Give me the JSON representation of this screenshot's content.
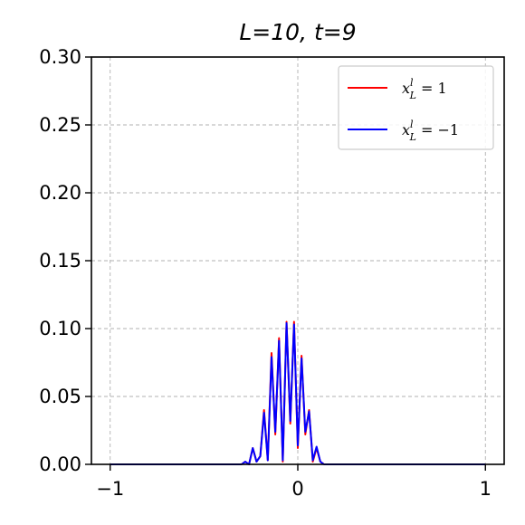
{
  "chart_data": {
    "type": "line",
    "title": "L=10, t=9",
    "xlabel": "",
    "ylabel": "",
    "xlim": [
      -1.1,
      1.1
    ],
    "ylim": [
      0,
      0.3
    ],
    "xticks": [
      -1,
      0,
      1
    ],
    "xtick_labels": [
      "−1",
      "0",
      "1"
    ],
    "yticks": [
      0,
      0.05,
      0.1,
      0.15,
      0.2,
      0.25,
      0.3
    ],
    "ytick_labels": [
      "0.00",
      "0.05",
      "0.10",
      "0.15",
      "0.20",
      "0.25",
      "0.30"
    ],
    "grid": true,
    "legend_position": "top-right",
    "series": [
      {
        "name": "x_L^l = 1",
        "color": "#ff0000",
        "x": [
          -1.0,
          -0.3,
          -0.28,
          -0.26,
          -0.24,
          -0.22,
          -0.2,
          -0.18,
          -0.16,
          -0.14,
          -0.12,
          -0.1,
          -0.08,
          -0.06,
          -0.04,
          -0.02,
          0.0,
          0.02,
          0.04,
          0.06,
          0.08,
          0.1,
          0.12,
          0.14,
          0.16,
          0.18,
          0.2,
          0.22,
          0.24,
          0.26,
          0.28,
          0.3,
          1.0
        ],
        "y": [
          0.0,
          0.0,
          0.002,
          0.0,
          0.012,
          0.002,
          0.006,
          0.04,
          0.003,
          0.082,
          0.022,
          0.093,
          0.002,
          0.105,
          0.03,
          0.105,
          0.012,
          0.08,
          0.022,
          0.04,
          0.002,
          0.012,
          0.002,
          0.0,
          0.0,
          0.0,
          0.0,
          0.0,
          0.0,
          0.0,
          0.0,
          0.0,
          0.0
        ]
      },
      {
        "name": "x_L^l = −1",
        "color": "#0000ff",
        "x": [
          -1.0,
          -0.3,
          -0.28,
          -0.26,
          -0.24,
          -0.22,
          -0.2,
          -0.18,
          -0.16,
          -0.14,
          -0.12,
          -0.1,
          -0.08,
          -0.06,
          -0.04,
          -0.02,
          0.0,
          0.02,
          0.04,
          0.06,
          0.08,
          0.1,
          0.12,
          0.14,
          0.16,
          0.18,
          0.2,
          0.22,
          0.24,
          0.26,
          0.28,
          0.3,
          1.0
        ],
        "y": [
          0.0,
          0.0,
          0.002,
          0.0,
          0.012,
          0.002,
          0.006,
          0.038,
          0.003,
          0.079,
          0.024,
          0.091,
          0.003,
          0.104,
          0.032,
          0.103,
          0.014,
          0.078,
          0.024,
          0.039,
          0.003,
          0.013,
          0.002,
          0.0,
          0.0,
          0.0,
          0.0,
          0.0,
          0.0,
          0.0,
          0.0,
          0.0,
          0.0
        ]
      }
    ],
    "legend": {
      "entries": [
        {
          "base": "x",
          "sup": "l",
          "sub": "L",
          "rest": " = 1"
        },
        {
          "base": "x",
          "sup": "l",
          "sub": "L",
          "rest": " = −1"
        }
      ]
    }
  }
}
